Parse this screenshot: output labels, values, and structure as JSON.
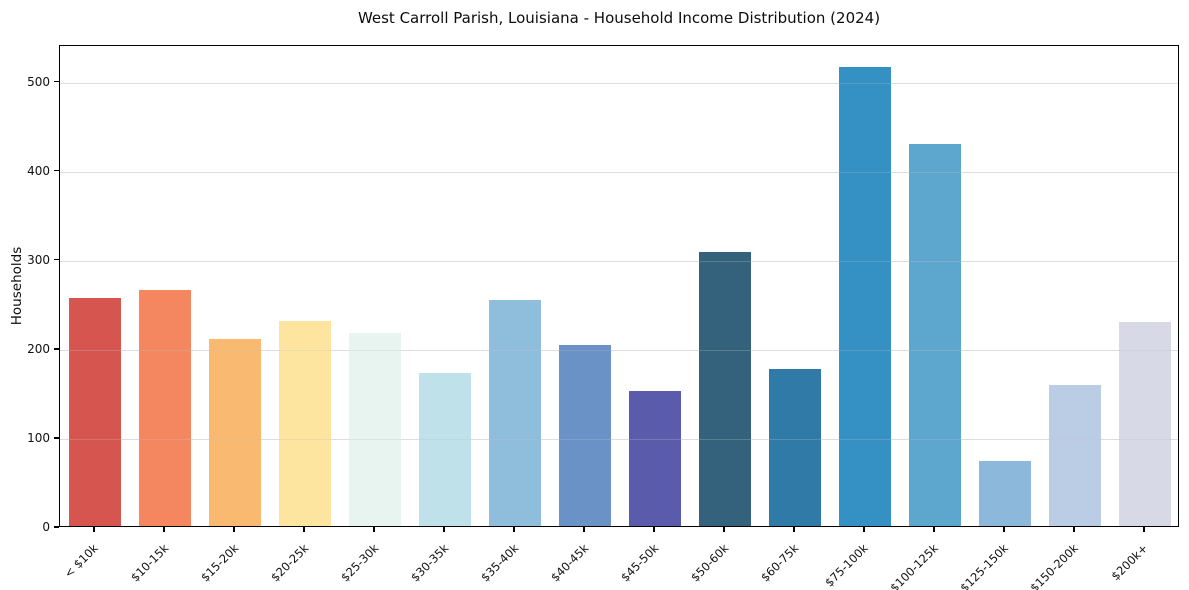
{
  "chart_data": {
    "type": "bar",
    "title": "West Carroll Parish, Louisiana - Household Income Distribution (2024)",
    "xlabel": "",
    "ylabel": "Households",
    "categories": [
      "< $10k",
      "$10-15k",
      "$15-20k",
      "$20-25k",
      "$25-30k",
      "$30-35k",
      "$35-40k",
      "$40-45k",
      "$45-50k",
      "$50-60k",
      "$60-75k",
      "$75-100k",
      "$100-125k",
      "$125-150k",
      "$150-200k",
      "$200k+"
    ],
    "values": [
      256,
      265,
      210,
      230,
      217,
      172,
      254,
      203,
      152,
      307,
      176,
      515,
      429,
      73,
      158,
      229
    ],
    "bar_colors": [
      "#d6564f",
      "#f4875f",
      "#f9b971",
      "#fde5a0",
      "#e8f4f0",
      "#bee1ea",
      "#8fbedd",
      "#6b92c6",
      "#5a5bab",
      "#34627c",
      "#2f7aa6",
      "#3590c3",
      "#5da6cd",
      "#8cb8db",
      "#bbcde4",
      "#d7dae6"
    ],
    "yticks": [
      0,
      100,
      200,
      300,
      400,
      500
    ],
    "ylim": [
      0,
      541
    ],
    "grid": "horizontal",
    "gridline_color": "#e8e8e8",
    "spine_color": "#000000",
    "background": "#ffffff",
    "legend": "none"
  }
}
